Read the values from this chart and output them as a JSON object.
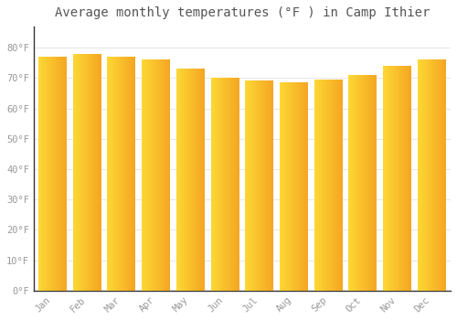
{
  "months": [
    "Jan",
    "Feb",
    "Mar",
    "Apr",
    "May",
    "Jun",
    "Jul",
    "Aug",
    "Sep",
    "Oct",
    "Nov",
    "Dec"
  ],
  "values": [
    77.0,
    78.0,
    77.0,
    76.0,
    73.0,
    70.0,
    69.0,
    68.5,
    69.5,
    71.0,
    74.0,
    76.0
  ],
  "bar_color_left": "#FDD835",
  "bar_color_right": "#F5A623",
  "background_color": "#FFFFFF",
  "grid_color": "#E8E8E8",
  "title": "Average monthly temperatures (°F ) in Camp Ithier",
  "title_fontsize": 10,
  "tick_label_color": "#999999",
  "ylim": [
    0,
    87
  ],
  "yticks": [
    0,
    10,
    20,
    30,
    40,
    50,
    60,
    70,
    80
  ],
  "ytick_labels": [
    "0°F",
    "10°F",
    "20°F",
    "30°F",
    "40°F",
    "50°F",
    "60°F",
    "70°F",
    "80°F"
  ]
}
